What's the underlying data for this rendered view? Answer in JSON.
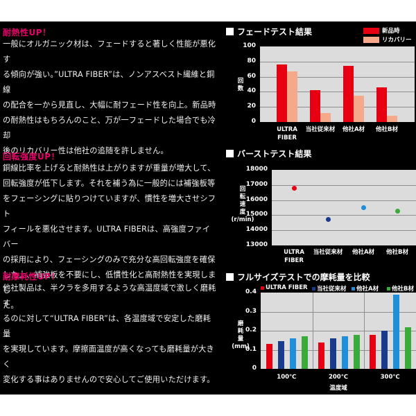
{
  "sections": [
    {
      "title": "耐熱性UP！",
      "lines": [
        "一般にオルガニック材は、フェードすると著しく性能が悪化す",
        "る傾向が強い。”ULTRA FIBER”は、ノンアスベスト繊維と銅線",
        "の配合を一から見直し、大幅に耐フェード性を向上。新品時",
        "の耐熱性はもちろんのこと、万が一フェードした場合でも冷却",
        "後のリカバリー性は他社の追随を許しません。"
      ]
    },
    {
      "title": "回転強度UP！",
      "lines": [
        "銅線比率を上げると耐熱性は上がりますが重量が増大して、",
        "回転強度が低下します。それを補う為に一般的には補強板等",
        "をフェーシングに貼りつけていますが、慣性を増大させシフト",
        "フィールを悪化させます。ULTRA FIBERは、高強度ファイバー",
        "の採用により、フェーシングのみで充分な高回転強度を確保",
        "した上、補強板を不要にし、低慣性化と高耐熱性を実現しまし",
        "た。"
      ]
    },
    {
      "title": "耐摩耗性UP！",
      "lines": [
        "他社製品は、半クラを多用するような高温度域で激しく磨耗す",
        "るのに対して“ULTRA FIBER”は、各温度域で安定した磨耗量",
        "を実現しています。摩擦面温度が高くなっても磨耗量が大きく",
        "変化する事はありませんので安心してご使用いただけます。"
      ]
    }
  ],
  "chart_data": [
    {
      "type": "bar",
      "title": "フェードテスト結果",
      "categories": [
        "ULTRA FIBER",
        "当社従来材",
        "他社A材",
        "他社B材"
      ],
      "category_labels": [
        [
          "ULTRA",
          "FIBER"
        ],
        [
          "当社従来材"
        ],
        [
          "他社A材"
        ],
        [
          "他社B材"
        ]
      ],
      "series": [
        {
          "name": "新品時",
          "color": "#e60012",
          "values": [
            76,
            42,
            74,
            46
          ]
        },
        {
          "name": "リカバリー",
          "color": "#f5a98a",
          "values": [
            67,
            12,
            35,
            8
          ]
        }
      ],
      "ylabel": "回数",
      "ylabel_chars": [
        "回",
        "数"
      ],
      "xlabel": "",
      "ylim": [
        0,
        100
      ],
      "yticks": [
        "100",
        "80",
        "60",
        "40",
        "20",
        "0"
      ],
      "grid": true,
      "legend_position": "top-right"
    },
    {
      "type": "scatter",
      "title": "バーストテスト結果",
      "categories": [
        "ULTRA FIBER",
        "当社従来材",
        "他社A材",
        "他社B材"
      ],
      "category_labels": [
        [
          "ULTRA",
          "FIBER"
        ],
        [
          "当社従来材"
        ],
        [
          "他社A材"
        ],
        [
          "他社B材"
        ]
      ],
      "values": [
        16800,
        14700,
        15500,
        15250
      ],
      "colors": [
        "#e60012",
        "#1a3a8c",
        "#1e8fd8",
        "#3aaa3a"
      ],
      "ylabel": "回転速度 (r/min)",
      "ylabel_chars": [
        "回",
        "転",
        "速",
        "度",
        "(r/min)"
      ],
      "xlabel": "",
      "ylim": [
        13000,
        18000
      ],
      "yticks": [
        "18000",
        "17000",
        "16000",
        "15000",
        "14000",
        "13000"
      ],
      "grid": true
    },
    {
      "type": "bar",
      "title": "フルサイズテストでの摩耗量を比較",
      "categories": [
        "100℃",
        "200℃",
        "300℃"
      ],
      "series": [
        {
          "name": "ULTRA FIBER",
          "color": "#e60012",
          "values": [
            0.13,
            0.14,
            0.18
          ]
        },
        {
          "name": "当社従来材",
          "color": "#1a3a8c",
          "values": [
            0.145,
            0.16,
            0.2
          ]
        },
        {
          "name": "他社A材",
          "color": "#1e8fd8",
          "values": [
            0.16,
            0.17,
            0.39
          ]
        },
        {
          "name": "他社B材",
          "color": "#3aaa3a",
          "values": [
            0.17,
            0.18,
            0.22
          ]
        }
      ],
      "ylabel": "磨耗量 (mm)",
      "ylabel_chars": [
        "磨",
        "耗",
        "量",
        "(mm)"
      ],
      "xlabel": "温度域",
      "ylim": [
        0,
        0.4
      ],
      "yticks": [
        "0.4",
        "0.3",
        "0.2",
        "0.1",
        "0"
      ],
      "grid": true,
      "legend_position": "top"
    }
  ]
}
